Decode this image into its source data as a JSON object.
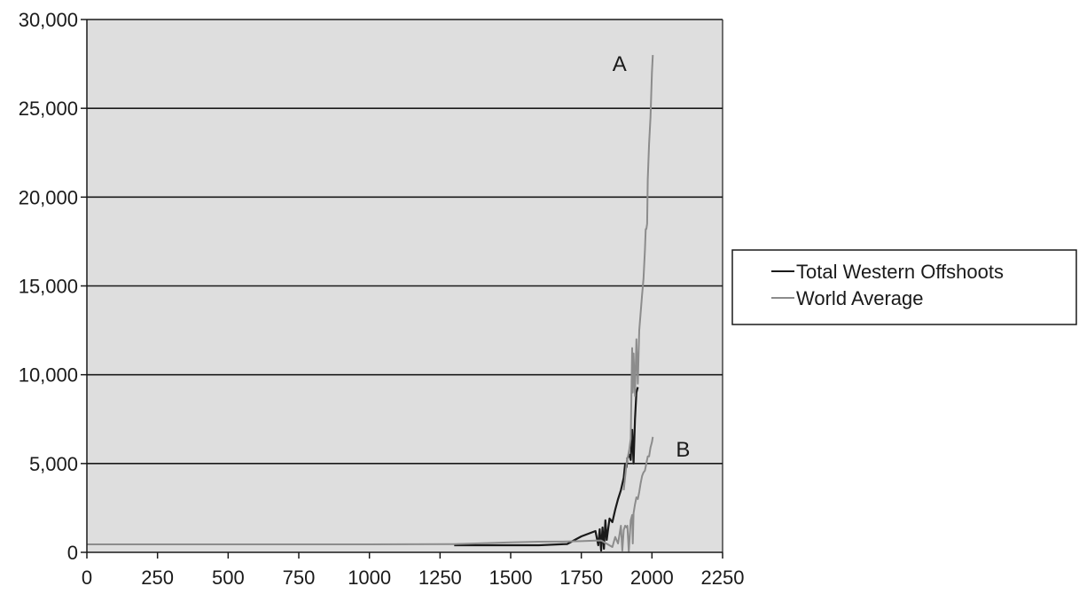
{
  "chart_data": {
    "type": "line",
    "title": "",
    "xlabel": "",
    "ylabel": "",
    "xlim": [
      0,
      2250
    ],
    "ylim": [
      0,
      30000
    ],
    "x_ticks": [
      0,
      250,
      500,
      750,
      1000,
      1250,
      1500,
      1750,
      2000,
      2250
    ],
    "x_tick_labels": [
      "0",
      "250",
      "500",
      "750",
      "1000",
      "1250",
      "1500",
      "1750",
      "2000",
      "2250"
    ],
    "y_ticks": [
      0,
      5000,
      10000,
      15000,
      20000,
      25000,
      30000
    ],
    "y_tick_labels": [
      "0",
      "5,000",
      "10,000",
      "15,000",
      "20,000",
      "25,000",
      "30,000"
    ],
    "grid": "horizontal",
    "plot_background": "#dedede",
    "legend_position": "right",
    "series": [
      {
        "name": "Total Western Offshoots",
        "color": "#1a1a1a",
        "x": [
          1300,
          1500,
          1600,
          1700,
          1750,
          1800,
          1810,
          1815,
          1820,
          1825,
          1830,
          1835,
          1840,
          1850,
          1860,
          1870,
          1880,
          1890,
          1900,
          1905,
          1910,
          1913,
          1920,
          1925,
          1930,
          1935,
          1940,
          1945,
          1950
        ],
        "y": [
          400,
          400,
          400,
          470,
          900,
          1200,
          400,
          1300,
          100,
          1400,
          200,
          1800,
          700,
          1900,
          1700,
          2400,
          3000,
          3500,
          4200,
          5000,
          4800,
          5300,
          5500,
          5200,
          6900,
          5000,
          7500,
          9000,
          9300
        ]
      },
      {
        "name": "World Average",
        "color": "#8c8c8c",
        "x": [
          0,
          1000,
          1300,
          1500,
          1600,
          1700,
          1750,
          1800,
          1820,
          1860,
          1870,
          1880,
          1890,
          1895,
          1900,
          1905,
          1910,
          1913,
          1918,
          1925,
          1930,
          1932,
          1935,
          1940,
          1945,
          1950,
          1955,
          1960,
          1965,
          1970,
          1975,
          1980,
          1985,
          1990,
          1995,
          2000,
          2003
        ],
        "y": [
          450,
          450,
          460,
          560,
          600,
          610,
          630,
          660,
          670,
          300,
          870,
          500,
          1500,
          100,
          1260,
          1500,
          1400,
          1500,
          50,
          1800,
          2100,
          500,
          2200,
          2700,
          3100,
          3000,
          3400,
          3900,
          4300,
          4500,
          4600,
          5000,
          5400,
          5400,
          5900,
          6200,
          6500
        ]
      },
      {
        "name": "",
        "color": "#8c8c8c",
        "x": [
          1900,
          1910,
          1920,
          1925,
          1930,
          1932,
          1935,
          1940,
          1945,
          1950,
          1955,
          1960,
          1965,
          1970,
          1975,
          1978,
          1980,
          1983,
          1985,
          1990,
          1995,
          2000,
          2003
        ],
        "y": [
          3500,
          5000,
          5800,
          6400,
          11500,
          9000,
          11200,
          8800,
          12000,
          9500,
          12500,
          13500,
          14500,
          15400,
          17000,
          18200,
          18200,
          18500,
          21000,
          23000,
          24500,
          27000,
          28000
        ]
      }
    ],
    "annotations": [
      {
        "label": "A",
        "x": 1860,
        "y": 27500
      },
      {
        "label": "B",
        "x": 2085,
        "y": 5800
      }
    ]
  }
}
